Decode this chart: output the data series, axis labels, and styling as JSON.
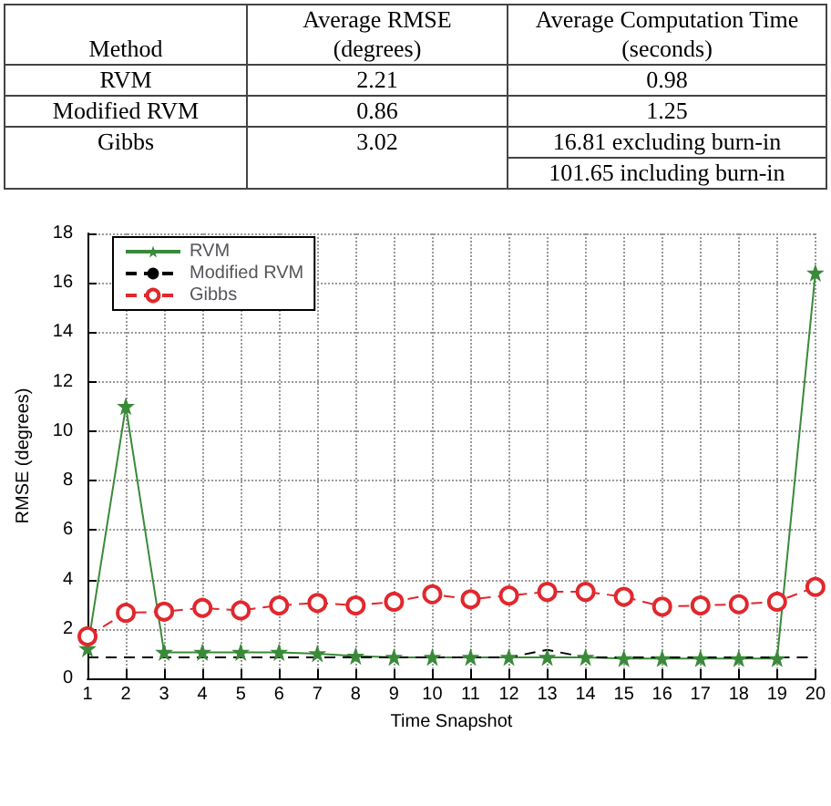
{
  "chart_data": [
    {
      "type": "other",
      "categories": [
        "Method",
        "Average RMSE (degrees)",
        "Average Computation Time (seconds)"
      ],
      "cell_labels": [
        [
          "RVM",
          "2.21",
          "0.98"
        ],
        [
          "Modified RVM",
          "0.86",
          "1.25"
        ],
        [
          "Gibbs",
          "3.02",
          [
            "16.81 excluding burn-in",
            "101.65 including burn-in"
          ]
        ]
      ]
    },
    {
      "type": "line",
      "xlabel": "Time Snapshot",
      "ylabel": "RMSE (degrees)",
      "x": [
        1,
        2,
        3,
        4,
        5,
        6,
        7,
        8,
        9,
        10,
        11,
        12,
        13,
        14,
        15,
        16,
        17,
        18,
        19,
        20
      ],
      "xlim": [
        1,
        20
      ],
      "xticks": [
        1,
        2,
        3,
        4,
        5,
        6,
        7,
        8,
        9,
        10,
        11,
        12,
        13,
        14,
        15,
        16,
        17,
        18,
        19,
        20
      ],
      "ylim": [
        0,
        18
      ],
      "yticks": [
        0,
        2,
        4,
        6,
        8,
        10,
        12,
        14,
        16,
        18
      ],
      "grid": true,
      "legend": "top left",
      "series": [
        {
          "name": "RVM",
          "color": "#3a8a3a",
          "marker": "star",
          "line_style": "solid",
          "values": [
            1.2,
            11,
            1.05,
            1.05,
            1.05,
            1.05,
            1.0,
            0.9,
            0.85,
            0.85,
            0.85,
            0.85,
            0.85,
            0.85,
            0.8,
            0.8,
            0.8,
            0.8,
            0.8,
            16.4
          ]
        },
        {
          "name": "Modified RVM",
          "color": "#000000",
          "marker": "none",
          "line_style": "dashed",
          "values": [
            0.85,
            0.85,
            0.85,
            0.85,
            0.85,
            0.85,
            0.85,
            0.85,
            0.85,
            0.85,
            0.85,
            0.85,
            1.15,
            0.85,
            0.85,
            0.85,
            0.85,
            0.85,
            0.85,
            0.85
          ]
        },
        {
          "name": "Gibbs",
          "color": "#e0282e",
          "marker": "circle",
          "line_style": "dashed",
          "values": [
            1.7,
            2.65,
            2.7,
            2.85,
            2.75,
            2.95,
            3.05,
            2.95,
            3.1,
            3.4,
            3.2,
            3.35,
            3.5,
            3.5,
            3.3,
            2.9,
            2.95,
            3.0,
            3.1,
            3.7
          ]
        }
      ]
    }
  ]
}
